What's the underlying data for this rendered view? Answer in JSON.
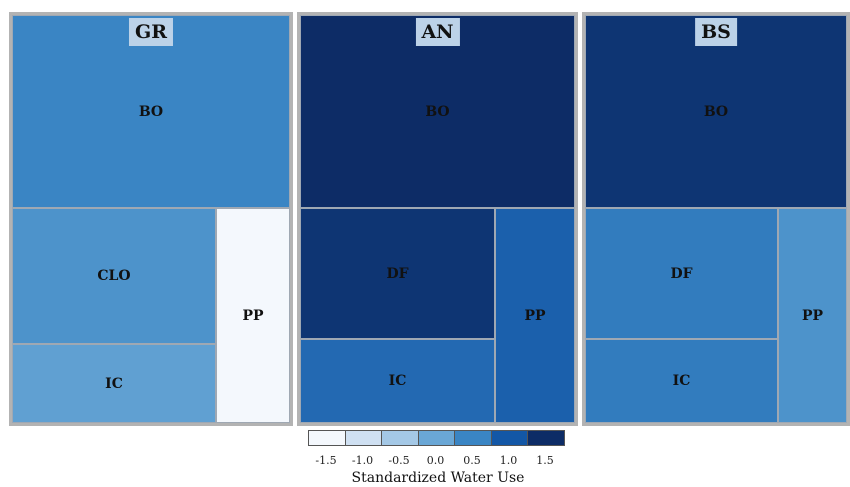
{
  "chart_data": {
    "type": "treemap",
    "panels": [
      {
        "title": "GR",
        "cells": [
          {
            "label": "BO",
            "value": 0.5
          },
          {
            "label": "CLO",
            "value": 0.3
          },
          {
            "label": "IC",
            "value": 0.1
          },
          {
            "label": "PP",
            "value": -1.5
          }
        ]
      },
      {
        "title": "AN",
        "cells": [
          {
            "label": "BO",
            "value": 1.6
          },
          {
            "label": "DF",
            "value": 1.4
          },
          {
            "label": "IC",
            "value": 0.8
          },
          {
            "label": "PP",
            "value": 0.9
          }
        ]
      },
      {
        "title": "BS",
        "cells": [
          {
            "label": "BO",
            "value": 1.4
          },
          {
            "label": "DF",
            "value": 0.6
          },
          {
            "label": "IC",
            "value": 0.6
          },
          {
            "label": "PP",
            "value": 0.3
          }
        ]
      }
    ],
    "legend": {
      "title": "Standardized Water Use",
      "ticks": [
        "-1.5",
        "-1.0",
        "-0.5",
        "0.0",
        "0.5",
        "1.0",
        "1.5"
      ],
      "colors": [
        "#f4f8fd",
        "#cfe0f2",
        "#a4c8e6",
        "#6aa7d6",
        "#3a85c4",
        "#1357a6",
        "#0d2c66"
      ]
    }
  }
}
